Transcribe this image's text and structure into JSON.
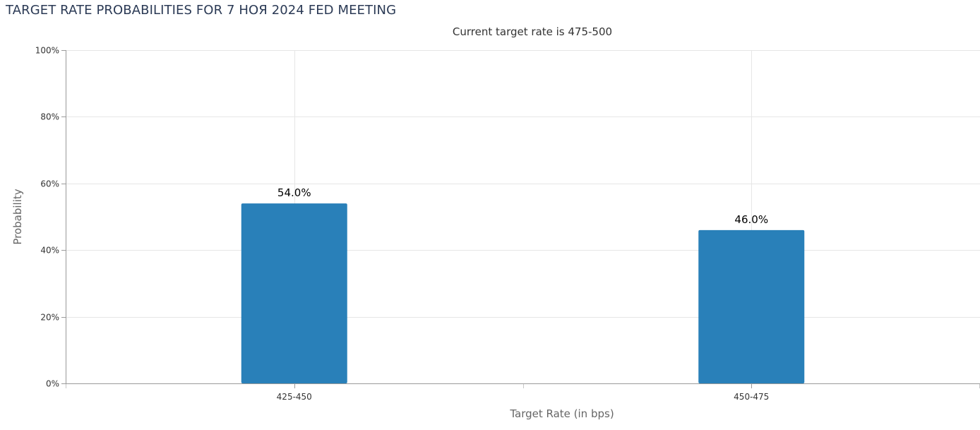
{
  "page": {
    "title": "TARGET RATE PROBABILITIES FOR 7 НОЯ 2024 FED MEETING"
  },
  "chart_data": {
    "type": "bar",
    "subtitle": "Current target rate is 475-500",
    "xlabel": "Target Rate (in bps)",
    "ylabel": "Probability",
    "categories": [
      "425-450",
      "450-475"
    ],
    "values": [
      54.0,
      46.0
    ],
    "data_labels": [
      "54.0%",
      "46.0%"
    ],
    "ylim": [
      0,
      100
    ],
    "yticks": [
      0,
      20,
      40,
      60,
      80,
      100
    ],
    "ytick_labels": [
      "0%",
      "20%",
      "40%",
      "60%",
      "80%",
      "100%"
    ],
    "grid": true,
    "legend": "none",
    "bar_color": "#2980b9"
  }
}
